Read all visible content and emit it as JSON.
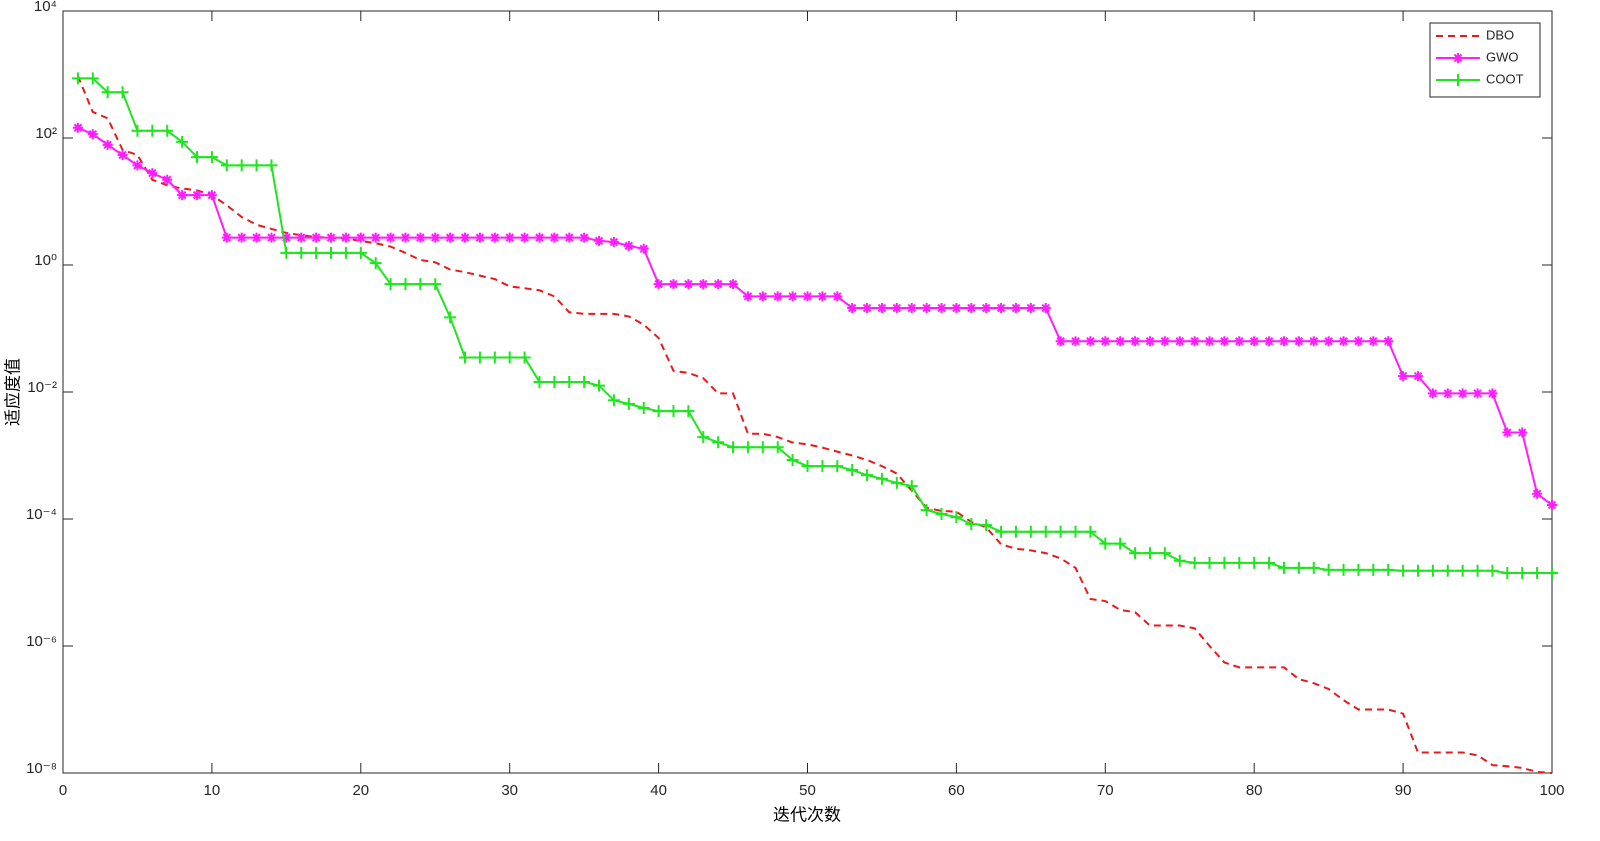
{
  "chart_data": {
    "type": "line",
    "x_label": "迭代次数",
    "y_label": "适应度值",
    "x": [
      1,
      2,
      3,
      4,
      5,
      6,
      7,
      8,
      9,
      10,
      11,
      12,
      13,
      14,
      15,
      16,
      17,
      18,
      19,
      20,
      21,
      22,
      23,
      24,
      25,
      26,
      27,
      28,
      29,
      30,
      31,
      32,
      33,
      34,
      35,
      36,
      37,
      38,
      39,
      40,
      41,
      42,
      43,
      44,
      45,
      46,
      47,
      48,
      49,
      50,
      51,
      52,
      53,
      54,
      55,
      56,
      57,
      58,
      59,
      60,
      61,
      62,
      63,
      64,
      65,
      66,
      67,
      68,
      69,
      70,
      71,
      72,
      73,
      74,
      75,
      76,
      77,
      78,
      79,
      80,
      81,
      82,
      83,
      84,
      85,
      86,
      87,
      88,
      89,
      90,
      91,
      92,
      93,
      94,
      95,
      96,
      97,
      98,
      99,
      100
    ],
    "xlim": [
      0,
      100
    ],
    "xticks": [
      0,
      10,
      20,
      30,
      40,
      50,
      60,
      70,
      80,
      90,
      100
    ],
    "ylim": [
      1e-08,
      10000
    ],
    "ylog": true,
    "yticks": [
      {
        "value": 1e-08,
        "label": "10⁻⁸"
      },
      {
        "value": 1e-06,
        "label": "10⁻⁶"
      },
      {
        "value": 0.0001,
        "label": "10⁻⁴"
      },
      {
        "value": 0.01,
        "label": "10⁻²"
      },
      {
        "value": 1,
        "label": "10⁰"
      },
      {
        "value": 100,
        "label": "10²"
      },
      {
        "value": 10000,
        "label": "10⁴"
      }
    ],
    "grid": false,
    "legend": "upper right",
    "series": [
      {
        "name": "DBO",
        "color": "#e8191b",
        "linestyle": "dashed",
        "values": [
          950,
          257,
          204,
          65,
          54,
          22,
          18,
          16,
          15,
          12.6,
          8.7,
          5.7,
          4.3,
          3.7,
          3.2,
          2.95,
          2.75,
          2.7,
          2.6,
          2.4,
          2.2,
          1.95,
          1.55,
          1.2,
          1.1,
          0.85,
          0.77,
          0.68,
          0.6,
          0.46,
          0.43,
          0.4,
          0.32,
          0.18,
          0.17,
          0.17,
          0.17,
          0.155,
          0.115,
          0.071,
          0.0215,
          0.02,
          0.0165,
          0.0095,
          0.0095,
          0.0022,
          0.0022,
          0.00195,
          0.0016,
          0.0015,
          0.00133,
          0.00115,
          0.001,
          0.00085,
          0.00068,
          0.00052,
          0.00028,
          0.00015,
          0.000134,
          0.00013,
          9e-05,
          7.4e-05,
          4e-05,
          3.4e-05,
          3.2e-05,
          2.9e-05,
          2.4e-05,
          1.7e-05,
          5.5e-06,
          5.1e-06,
          3.7e-06,
          3.4e-06,
          2.1e-06,
          2.1e-06,
          2.1e-06,
          1.9e-06,
          1e-06,
          5.5e-07,
          4.6e-07,
          4.6e-07,
          4.6e-07,
          4.6e-07,
          3e-07,
          2.6e-07,
          2.1e-07,
          1.4e-07,
          1e-07,
          1e-07,
          1e-07,
          8.6e-08,
          2.1e-08,
          2.1e-08,
          2.1e-08,
          2.1e-08,
          1.9e-08,
          1.33e-08,
          1.28e-08,
          1.2e-08,
          1.04e-08,
          1e-08
        ]
      },
      {
        "name": "GWO",
        "color": "#ff1dff",
        "linestyle": "solid",
        "marker": "star",
        "values": [
          145,
          115,
          78,
          54,
          37,
          28,
          22,
          12.6,
          12.6,
          12.6,
          2.7,
          2.7,
          2.7,
          2.7,
          2.7,
          2.7,
          2.7,
          2.7,
          2.7,
          2.7,
          2.7,
          2.7,
          2.7,
          2.7,
          2.7,
          2.7,
          2.7,
          2.7,
          2.7,
          2.7,
          2.7,
          2.7,
          2.7,
          2.7,
          2.7,
          2.4,
          2.3,
          2.0,
          1.8,
          0.5,
          0.5,
          0.5,
          0.5,
          0.5,
          0.5,
          0.32,
          0.32,
          0.32,
          0.32,
          0.32,
          0.32,
          0.32,
          0.21,
          0.21,
          0.21,
          0.21,
          0.21,
          0.21,
          0.21,
          0.21,
          0.21,
          0.21,
          0.21,
          0.21,
          0.21,
          0.21,
          0.063,
          0.063,
          0.063,
          0.063,
          0.063,
          0.063,
          0.063,
          0.063,
          0.063,
          0.063,
          0.063,
          0.063,
          0.063,
          0.063,
          0.063,
          0.063,
          0.063,
          0.063,
          0.063,
          0.063,
          0.063,
          0.063,
          0.063,
          0.0178,
          0.0178,
          0.0095,
          0.0095,
          0.0095,
          0.0095,
          0.0095,
          0.0023,
          0.0023,
          0.00025,
          0.000166
        ]
      },
      {
        "name": "COOT",
        "color": "#1ee61e",
        "linestyle": "solid",
        "marker": "plus",
        "values": [
          870,
          870,
          525,
          525,
          130,
          130,
          130,
          87,
          50,
          50,
          37,
          37,
          37,
          37,
          1.55,
          1.55,
          1.55,
          1.55,
          1.55,
          1.55,
          1.07,
          0.5,
          0.5,
          0.5,
          0.5,
          0.15,
          0.035,
          0.035,
          0.035,
          0.035,
          0.035,
          0.0144,
          0.0144,
          0.0144,
          0.0144,
          0.0126,
          0.0074,
          0.0065,
          0.0056,
          0.005,
          0.005,
          0.005,
          0.00195,
          0.00162,
          0.00135,
          0.00135,
          0.00135,
          0.00135,
          0.00085,
          0.00068,
          0.00068,
          0.00068,
          0.00059,
          0.00049,
          0.00043,
          0.00037,
          0.00033,
          0.000138,
          0.00012,
          0.000107,
          8.3e-05,
          8e-05,
          6.3e-05,
          6.3e-05,
          6.3e-05,
          6.3e-05,
          6.3e-05,
          6.3e-05,
          6.3e-05,
          4.1e-05,
          4.1e-05,
          2.9e-05,
          2.9e-05,
          2.9e-05,
          2.2e-05,
          2.04e-05,
          2.04e-05,
          2.04e-05,
          2.04e-05,
          2.04e-05,
          2.04e-05,
          1.7e-05,
          1.7e-05,
          1.7e-05,
          1.58e-05,
          1.58e-05,
          1.58e-05,
          1.58e-05,
          1.58e-05,
          1.53e-05,
          1.53e-05,
          1.53e-05,
          1.53e-05,
          1.53e-05,
          1.53e-05,
          1.53e-05,
          1.41e-05,
          1.41e-05,
          1.41e-05,
          1.41e-05
        ]
      }
    ]
  }
}
